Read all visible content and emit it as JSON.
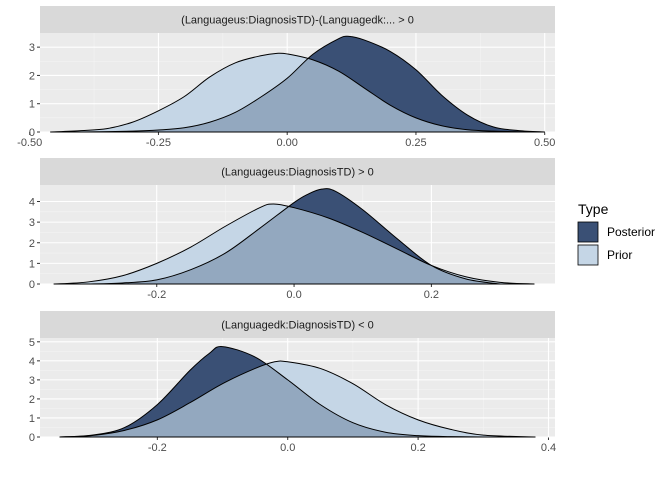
{
  "legend": {
    "title": "Type",
    "items": [
      {
        "label": "Posterior",
        "color": "#3A5075"
      },
      {
        "label": "Prior",
        "color": "#C5D6E6"
      }
    ]
  },
  "colors": {
    "posterior_fill": "#3A5075",
    "prior_fill": "#C5D6E6",
    "overlap_fill": "#93A8BF",
    "panel_bg": "#EBEBEB",
    "strip_bg": "#D9D9D9",
    "grid_major": "#FFFFFF",
    "grid_minor": "#F4F4F4",
    "axis_text": "#4D4D4D",
    "strip_text": "#1A1A1A"
  },
  "chart_data": [
    {
      "type": "area",
      "title": "(Languageus:DiagnosisTD)-(Languagedk:... > 0",
      "xlim": [
        -0.48,
        0.52
      ],
      "ylim": [
        0,
        3.5
      ],
      "xticks": [
        -0.5,
        -0.25,
        0.0,
        0.25,
        0.5
      ],
      "xtick_labels": [
        "-0.50",
        "-0.25",
        "0.00",
        "0.25",
        "0.50"
      ],
      "yticks": [
        0,
        1,
        2,
        3
      ],
      "ytick_labels": [
        "0",
        "1",
        "2",
        "3"
      ],
      "series": [
        {
          "name": "Prior",
          "x": [
            -0.46,
            -0.4,
            -0.35,
            -0.3,
            -0.25,
            -0.2,
            -0.15,
            -0.1,
            -0.05,
            -0.02,
            0.0,
            0.05,
            0.1,
            0.15,
            0.2,
            0.25,
            0.3,
            0.35,
            0.4,
            0.45,
            0.5
          ],
          "y": [
            0.0,
            0.05,
            0.12,
            0.35,
            0.75,
            1.25,
            1.95,
            2.45,
            2.7,
            2.78,
            2.76,
            2.55,
            2.15,
            1.55,
            0.95,
            0.5,
            0.22,
            0.08,
            0.03,
            0.01,
            0.0
          ]
        },
        {
          "name": "Posterior",
          "x": [
            -0.4,
            -0.3,
            -0.25,
            -0.2,
            -0.15,
            -0.1,
            -0.05,
            0.0,
            0.05,
            0.1,
            0.12,
            0.15,
            0.2,
            0.25,
            0.3,
            0.35,
            0.4,
            0.45,
            0.5
          ],
          "y": [
            0.0,
            0.03,
            0.07,
            0.15,
            0.35,
            0.7,
            1.25,
            1.9,
            2.75,
            3.3,
            3.38,
            3.25,
            2.85,
            2.2,
            1.3,
            0.6,
            0.18,
            0.05,
            0.0
          ]
        }
      ]
    },
    {
      "type": "area",
      "title": "(Languageus:DiagnosisTD) > 0",
      "xlim": [
        -0.37,
        0.38
      ],
      "ylim": [
        0,
        4.8
      ],
      "xticks": [
        -0.2,
        0.0,
        0.2
      ],
      "xtick_labels": [
        "-0.2",
        "0.0",
        "0.2"
      ],
      "yticks": [
        0,
        1,
        2,
        3,
        4
      ],
      "ytick_labels": [
        "0",
        "1",
        "2",
        "3",
        "4"
      ],
      "series": [
        {
          "name": "Prior",
          "x": [
            -0.35,
            -0.3,
            -0.25,
            -0.2,
            -0.15,
            -0.1,
            -0.05,
            -0.03,
            0.0,
            0.05,
            0.1,
            0.15,
            0.2,
            0.25,
            0.3,
            0.35
          ],
          "y": [
            0.0,
            0.1,
            0.4,
            1.0,
            1.8,
            2.8,
            3.7,
            3.88,
            3.7,
            3.2,
            2.5,
            1.7,
            0.9,
            0.35,
            0.08,
            0.0
          ]
        },
        {
          "name": "Posterior",
          "x": [
            -0.3,
            -0.25,
            -0.2,
            -0.15,
            -0.1,
            -0.05,
            0.0,
            0.02,
            0.04,
            0.06,
            0.1,
            0.15,
            0.2,
            0.25,
            0.3
          ],
          "y": [
            0.0,
            0.05,
            0.2,
            0.7,
            1.5,
            2.7,
            3.95,
            4.35,
            4.6,
            4.5,
            3.6,
            2.2,
            0.9,
            0.25,
            0.0
          ]
        }
      ]
    },
    {
      "type": "area",
      "title": "(Languagedk:DiagnosisTD) < 0",
      "xlim": [
        -0.38,
        0.41
      ],
      "ylim": [
        0,
        5.2
      ],
      "xticks": [
        -0.2,
        0.0,
        0.2,
        0.4
      ],
      "xtick_labels": [
        "-0.2",
        "0.0",
        "0.2",
        "0.4"
      ],
      "yticks": [
        0,
        1,
        2,
        3,
        4,
        5
      ],
      "ytick_labels": [
        "0",
        "1",
        "2",
        "3",
        "4",
        "5"
      ],
      "series": [
        {
          "name": "Prior",
          "x": [
            -0.35,
            -0.3,
            -0.25,
            -0.2,
            -0.15,
            -0.1,
            -0.05,
            -0.02,
            0.0,
            0.05,
            0.1,
            0.15,
            0.2,
            0.25,
            0.3,
            0.38
          ],
          "y": [
            0.0,
            0.08,
            0.35,
            0.9,
            1.8,
            2.8,
            3.6,
            3.95,
            3.95,
            3.6,
            2.8,
            1.7,
            0.9,
            0.4,
            0.1,
            0.0
          ]
        },
        {
          "name": "Posterior",
          "x": [
            -0.35,
            -0.3,
            -0.25,
            -0.2,
            -0.15,
            -0.12,
            -0.1,
            -0.05,
            0.0,
            0.05,
            0.1,
            0.15,
            0.2,
            0.25,
            0.3
          ],
          "y": [
            0.0,
            0.1,
            0.5,
            1.7,
            3.5,
            4.4,
            4.75,
            4.2,
            3.0,
            1.7,
            0.75,
            0.25,
            0.07,
            0.02,
            0.0
          ]
        }
      ]
    }
  ]
}
